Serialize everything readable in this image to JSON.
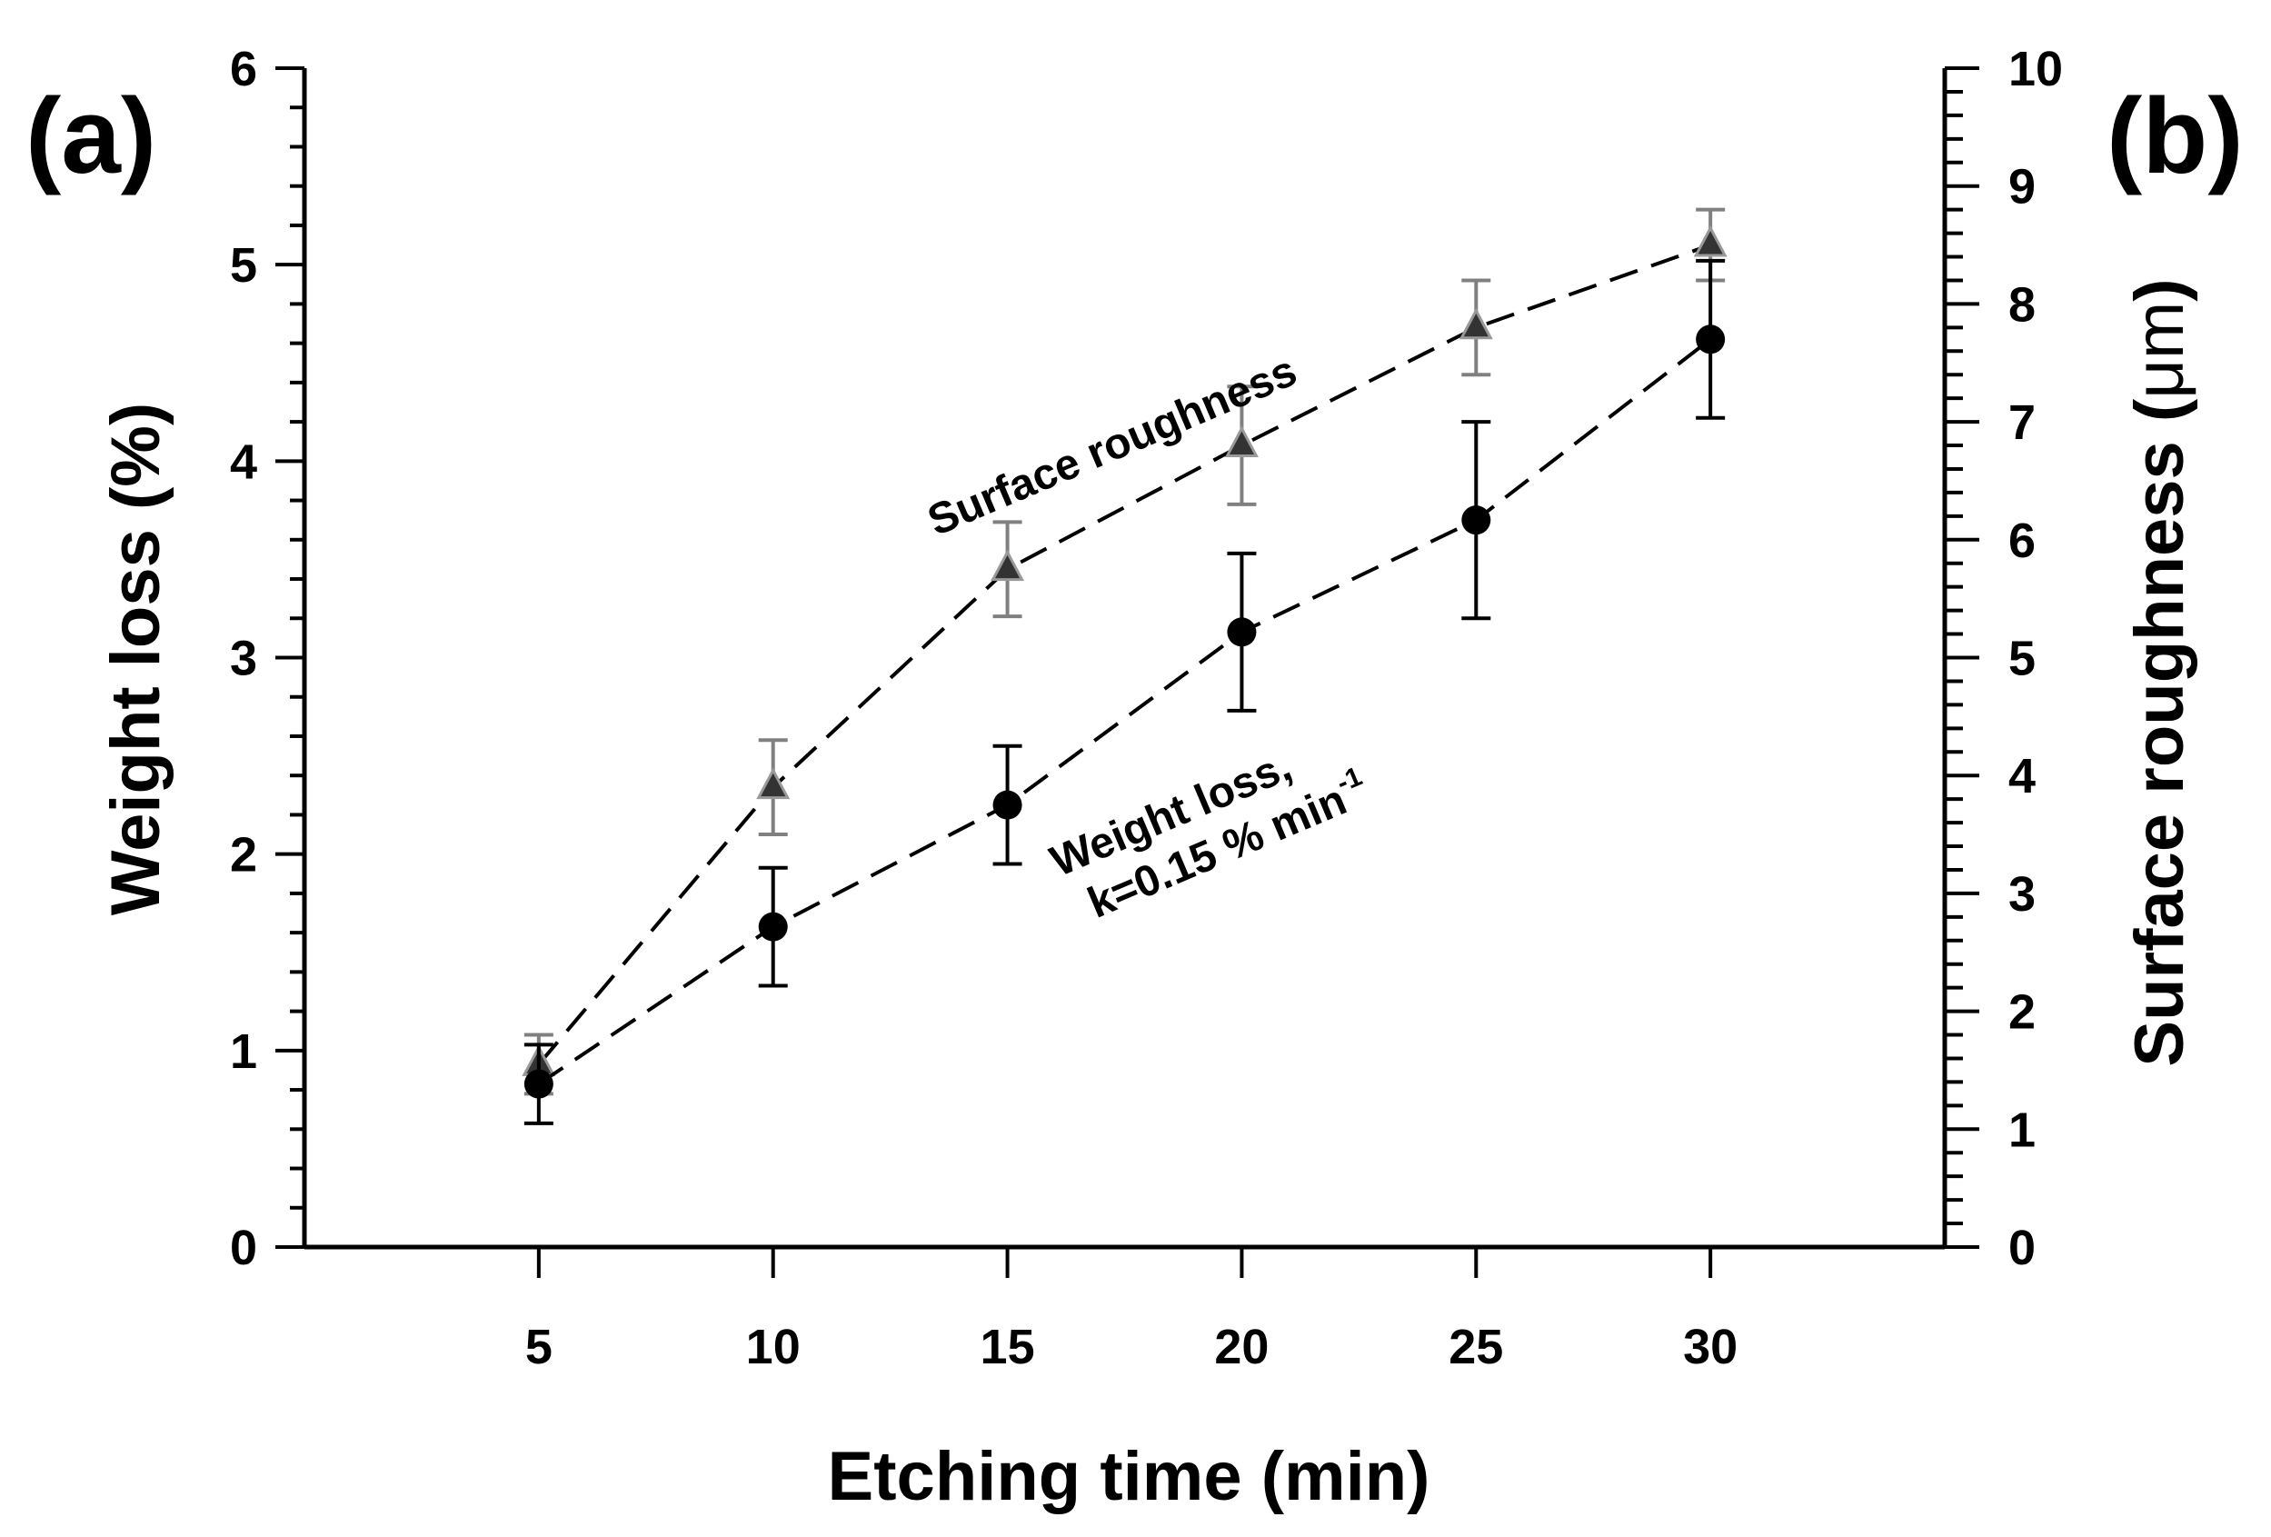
{
  "chart_data": {
    "type": "line",
    "panel_labels": [
      "(a)",
      "(b)"
    ],
    "xlabel": "Etching time (min)",
    "ylabel_left": "Weight loss (%)",
    "ylabel_right_prefix": "Surface roughness (",
    "ylabel_right_unit": "μm",
    "ylabel_right_suffix": ")",
    "xlim": [
      0,
      35
    ],
    "ylim_left": [
      0,
      6
    ],
    "ylim_right": [
      0,
      10
    ],
    "x_ticks": [
      5,
      10,
      15,
      20,
      25,
      30
    ],
    "y_left_ticks": [
      0,
      1,
      2,
      3,
      4,
      5,
      6
    ],
    "y_right_ticks": [
      0,
      1,
      2,
      3,
      4,
      5,
      6,
      7,
      8,
      9,
      10
    ],
    "x": [
      5,
      10,
      15,
      20,
      25,
      30
    ],
    "series": [
      {
        "name": "Surface roughness",
        "axis": "right",
        "marker": "triangle",
        "values": [
          1.55,
          3.9,
          5.75,
          6.8,
          7.8,
          8.5
        ],
        "error": [
          0.25,
          0.4,
          0.4,
          0.5,
          0.4,
          0.3
        ],
        "color": "#333333",
        "error_color": "#808080"
      },
      {
        "name": "Weight loss",
        "axis": "left",
        "marker": "circle",
        "values": [
          0.83,
          1.63,
          2.25,
          3.13,
          3.7,
          4.62
        ],
        "error": [
          0.2,
          0.3,
          0.3,
          0.4,
          0.5,
          0.4
        ],
        "color": "#000000",
        "error_color": "#000000"
      }
    ],
    "annotations": {
      "surface": "Surface roughness",
      "weight_line1": "Weight loss,",
      "weight_line2": "k=0.15 % min",
      "weight_sup": "-1"
    },
    "grid": false
  }
}
